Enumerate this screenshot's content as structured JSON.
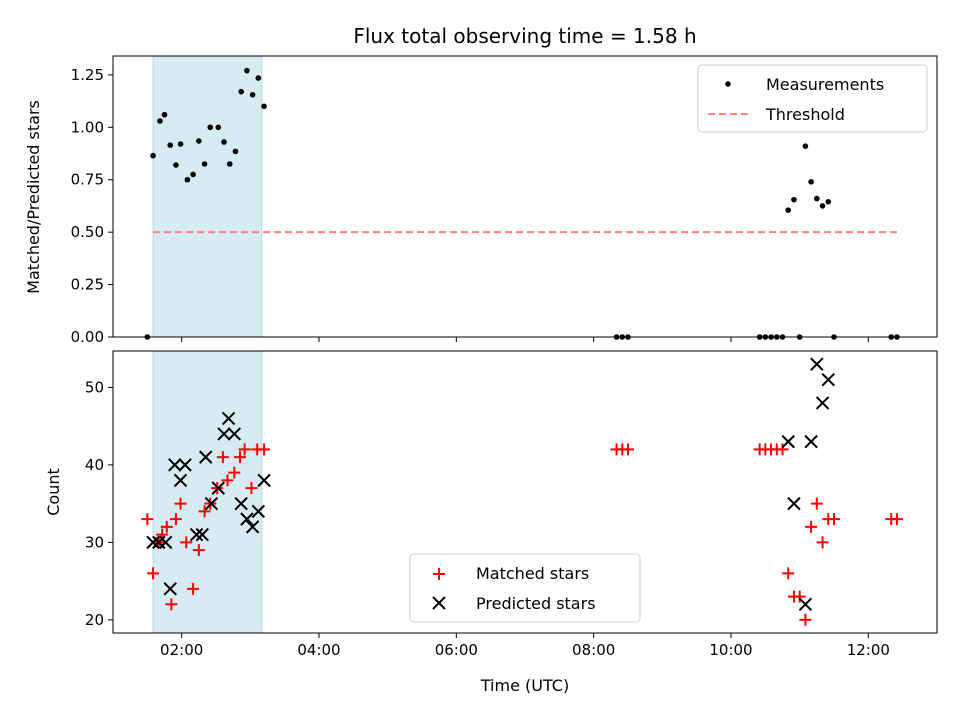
{
  "chart_data": {
    "type": "scatter",
    "title": "Flux total observing time = 1.58 h",
    "xlabel": "Time (UTC)",
    "xlim": [
      "01:00",
      "13:00"
    ],
    "x_ticks": [
      "02:00",
      "04:00",
      "06:00",
      "08:00",
      "10:00",
      "12:00"
    ],
    "highlight_span": {
      "start": "01:35",
      "end": "03:10",
      "color": "#add8e6"
    },
    "panels": [
      {
        "id": "ratio",
        "ylabel": "Matched/Predicted stars",
        "ylim": [
          0,
          1.34
        ],
        "y_ticks": [
          "0.00",
          "0.25",
          "0.50",
          "0.75",
          "1.00",
          "1.25"
        ],
        "legend_position": "top-right",
        "series": [
          {
            "name": "Measurements",
            "marker": "dot",
            "color": "#000000",
            "points": [
              [
                "01:30",
                0.0
              ],
              [
                "01:35",
                0.865
              ],
              [
                "01:41",
                1.03
              ],
              [
                "01:45",
                1.06
              ],
              [
                "01:50",
                0.915
              ],
              [
                "01:55",
                0.82
              ],
              [
                "01:59",
                0.92
              ],
              [
                "02:05",
                0.75
              ],
              [
                "02:10",
                0.775
              ],
              [
                "02:15",
                0.935
              ],
              [
                "02:20",
                0.825
              ],
              [
                "02:25",
                1.0
              ],
              [
                "02:32",
                1.0
              ],
              [
                "02:37",
                0.93
              ],
              [
                "02:42",
                0.825
              ],
              [
                "02:47",
                0.885
              ],
              [
                "02:52",
                1.17
              ],
              [
                "02:57",
                1.27
              ],
              [
                "03:02",
                1.155
              ],
              [
                "03:07",
                1.235
              ],
              [
                "03:12",
                1.1
              ],
              [
                "08:20",
                0.0
              ],
              [
                "08:25",
                0.0
              ],
              [
                "08:30",
                0.0
              ],
              [
                "10:25",
                0.0
              ],
              [
                "10:30",
                0.0
              ],
              [
                "10:35",
                0.0
              ],
              [
                "10:40",
                0.0
              ],
              [
                "10:45",
                0.0
              ],
              [
                "10:50",
                0.605
              ],
              [
                "10:55",
                0.655
              ],
              [
                "11:00",
                0.0
              ],
              [
                "11:05",
                0.91
              ],
              [
                "11:10",
                0.74
              ],
              [
                "11:15",
                0.66
              ],
              [
                "11:20",
                0.625
              ],
              [
                "11:25",
                0.645
              ],
              [
                "11:30",
                0.0
              ],
              [
                "12:20",
                0.0
              ],
              [
                "12:25",
                0.0
              ]
            ]
          },
          {
            "name": "Threshold",
            "type": "line",
            "style": "dashed",
            "color": "#ff7f7f",
            "points": [
              [
                "01:35",
                0.5
              ],
              [
                "12:25",
                0.5
              ]
            ]
          }
        ]
      },
      {
        "id": "count",
        "ylabel": "Count",
        "ylim": [
          18.3,
          54.7
        ],
        "y_ticks": [
          "20",
          "30",
          "40",
          "50"
        ],
        "legend_position": "bottom-center",
        "series": [
          {
            "name": "Matched stars",
            "marker": "plus",
            "color": "#ff0000",
            "points": [
              [
                "01:30",
                33
              ],
              [
                "01:35",
                26
              ],
              [
                "01:40",
                30
              ],
              [
                "01:43",
                31
              ],
              [
                "01:47",
                32
              ],
              [
                "01:51",
                22
              ],
              [
                "01:55",
                33
              ],
              [
                "01:59",
                35
              ],
              [
                "02:04",
                30
              ],
              [
                "02:10",
                24
              ],
              [
                "02:15",
                29
              ],
              [
                "02:20",
                34
              ],
              [
                "02:25",
                35
              ],
              [
                "02:31",
                37
              ],
              [
                "02:36",
                41
              ],
              [
                "02:40",
                38
              ],
              [
                "02:46",
                39
              ],
              [
                "02:51",
                41
              ],
              [
                "02:55",
                42
              ],
              [
                "03:01",
                37
              ],
              [
                "03:06",
                42
              ],
              [
                "03:12",
                42
              ],
              [
                "08:20",
                42
              ],
              [
                "08:25",
                42
              ],
              [
                "08:30",
                42
              ],
              [
                "10:25",
                42
              ],
              [
                "10:30",
                42
              ],
              [
                "10:35",
                42
              ],
              [
                "10:40",
                42
              ],
              [
                "10:45",
                42
              ],
              [
                "10:50",
                26
              ],
              [
                "10:55",
                23
              ],
              [
                "11:00",
                23
              ],
              [
                "11:05",
                20
              ],
              [
                "11:10",
                32
              ],
              [
                "11:15",
                35
              ],
              [
                "11:20",
                30
              ],
              [
                "11:25",
                33
              ],
              [
                "11:30",
                33
              ],
              [
                "12:20",
                33
              ],
              [
                "12:25",
                33
              ]
            ]
          },
          {
            "name": "Predicted stars",
            "marker": "x",
            "color": "#000000",
            "points": [
              [
                "01:35",
                30
              ],
              [
                "01:40",
                30
              ],
              [
                "01:46",
                30
              ],
              [
                "01:50",
                24
              ],
              [
                "01:54",
                40
              ],
              [
                "01:59",
                38
              ],
              [
                "02:03",
                40
              ],
              [
                "02:13",
                31
              ],
              [
                "02:18",
                31
              ],
              [
                "02:21",
                41
              ],
              [
                "02:26",
                35
              ],
              [
                "02:32",
                37
              ],
              [
                "02:37",
                44
              ],
              [
                "02:41",
                46
              ],
              [
                "02:46",
                44
              ],
              [
                "02:52",
                35
              ],
              [
                "02:57",
                33
              ],
              [
                "03:02",
                32
              ],
              [
                "03:07",
                34
              ],
              [
                "03:12",
                38
              ],
              [
                "10:50",
                43
              ],
              [
                "10:55",
                35
              ],
              [
                "11:05",
                22
              ],
              [
                "11:10",
                43
              ],
              [
                "11:15",
                53
              ],
              [
                "11:20",
                48
              ],
              [
                "11:25",
                51
              ]
            ]
          }
        ]
      }
    ]
  }
}
